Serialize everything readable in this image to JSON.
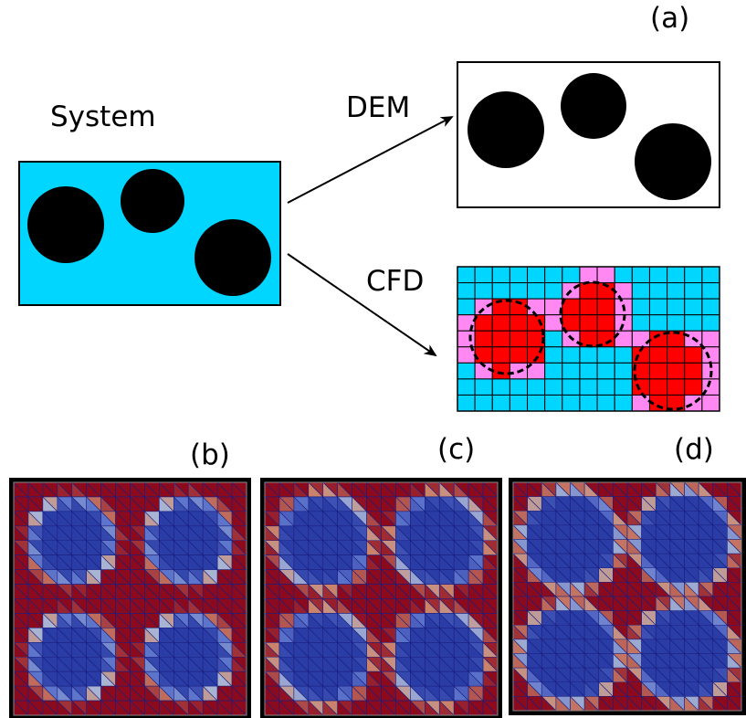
{
  "panel_labels": {
    "a": "(a)",
    "b": "(b)",
    "c": "(c)",
    "d": "(d)"
  },
  "labels": {
    "system": "System",
    "dem": "DEM",
    "cfd": "CFD"
  },
  "colors": {
    "fluid": "#00d6ff",
    "particle": "#000000",
    "cell_full": "#ff0000",
    "cell_partial": "#ff88f2",
    "mesh_line": "#1a1f80",
    "field_low": "#2a3da6",
    "field_high": "#8b0a1e"
  },
  "cfd_grid": {
    "cols": 15,
    "rows": 9
  },
  "field_grid_cells": 16,
  "mesh_panels": [
    {
      "label": "(b)",
      "particle_radius_fraction": 0.36
    },
    {
      "label": "(c)",
      "particle_radius_fraction": 0.4
    },
    {
      "label": "(d)",
      "particle_radius_fraction": 0.43
    }
  ]
}
